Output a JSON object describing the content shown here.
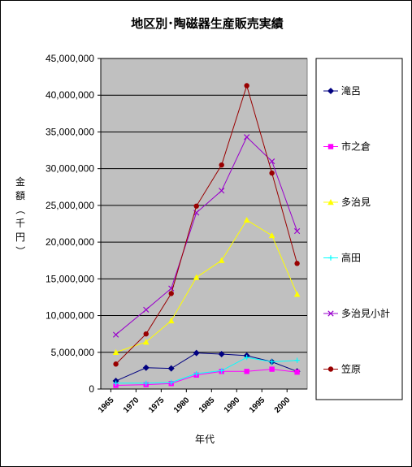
{
  "chart_data": {
    "type": "line",
    "title": "地区別･陶磁器生産販売実績",
    "xlabel": "年代",
    "ylabel": "金額（千円）",
    "categories": [
      "1965",
      "1970",
      "1975",
      "1980",
      "1985",
      "1990",
      "1995",
      "2000"
    ],
    "x": [
      1966,
      1972,
      1977,
      1982,
      1987,
      1992,
      1997,
      2002
    ],
    "xlim": [
      1963,
      2004
    ],
    "ylim": [
      0,
      45000000
    ],
    "yticks": [
      0,
      5000000,
      10000000,
      15000000,
      20000000,
      25000000,
      30000000,
      35000000,
      40000000,
      45000000
    ],
    "ytick_labels": [
      "0",
      "5,000,000",
      "10,000,000",
      "15,000,000",
      "20,000,000",
      "25,000,000",
      "30,000,000",
      "35,000,000",
      "40,000,000",
      "45,000,000"
    ],
    "grid": true,
    "legend": "right",
    "series": [
      {
        "name": "滝呂",
        "color": "#000080",
        "marker": "diamond",
        "values": [
          1100000,
          2900000,
          2800000,
          4900000,
          4750000,
          4550000,
          3700000,
          2400000
        ]
      },
      {
        "name": "市之倉",
        "color": "#ff00ff",
        "marker": "square",
        "values": [
          500000,
          600000,
          750000,
          1900000,
          2400000,
          2400000,
          2700000,
          2300000
        ]
      },
      {
        "name": "多治見",
        "color": "#ffff00",
        "marker": "triangle",
        "values": [
          5000000,
          6400000,
          9300000,
          15200000,
          17500000,
          23000000,
          20900000,
          12900000
        ]
      },
      {
        "name": "高田",
        "color": "#00ffff",
        "marker": "cross",
        "values": [
          800000,
          800000,
          900000,
          2100000,
          2500000,
          4300000,
          3700000,
          3900000
        ]
      },
      {
        "name": "多治見小計",
        "color": "#9900cc",
        "marker": "x",
        "values": [
          7400000,
          10800000,
          13700000,
          24000000,
          27000000,
          34300000,
          31000000,
          21500000
        ]
      },
      {
        "name": "笠原",
        "color": "#990000",
        "marker": "circle",
        "values": [
          3400000,
          7500000,
          13000000,
          24900000,
          30500000,
          41300000,
          29400000,
          17100000
        ]
      }
    ]
  }
}
